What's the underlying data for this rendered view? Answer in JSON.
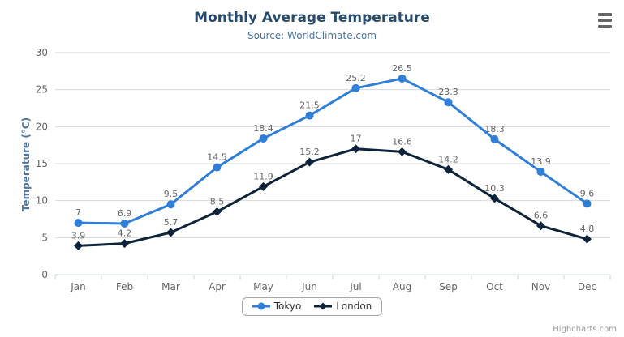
{
  "chart_data": {
    "type": "line",
    "title": "Monthly Average Temperature",
    "subtitle": "Source: WorldClimate.com",
    "categories": [
      "Jan",
      "Feb",
      "Mar",
      "Apr",
      "May",
      "Jun",
      "Jul",
      "Aug",
      "Sep",
      "Oct",
      "Nov",
      "Dec"
    ],
    "series": [
      {
        "name": "Tokyo",
        "color": "#2f7ed8",
        "marker": "circle",
        "values": [
          7,
          6.9,
          9.5,
          14.5,
          18.4,
          21.5,
          25.2,
          26.5,
          23.3,
          18.3,
          13.9,
          9.6
        ]
      },
      {
        "name": "London",
        "color": "#0d233a",
        "marker": "diamond",
        "values": [
          3.9,
          4.2,
          5.7,
          8.5,
          11.9,
          15.2,
          17,
          16.6,
          14.2,
          10.3,
          6.6,
          4.8
        ]
      }
    ],
    "xlabel": "",
    "ylabel": "Temperature (°C)",
    "ylim": [
      0,
      30
    ],
    "yticks": [
      0,
      5,
      10,
      15,
      20,
      25,
      30
    ],
    "grid": true,
    "legend_position": "bottom",
    "data_labels_visible": true
  },
  "credits": {
    "label": "Highcharts.com"
  },
  "colors": {
    "title": "#274b6d",
    "subtitle": "#4d759e",
    "axis_title": "#4d759e",
    "axis_labels": "#666666",
    "data_labels": "#666666",
    "gridline": "#d8d8d8",
    "axis_line": "#c0d0e0",
    "legend_text": "#333333",
    "credits": "#999999",
    "export_icon": "#666666",
    "background": "#ffffff"
  }
}
